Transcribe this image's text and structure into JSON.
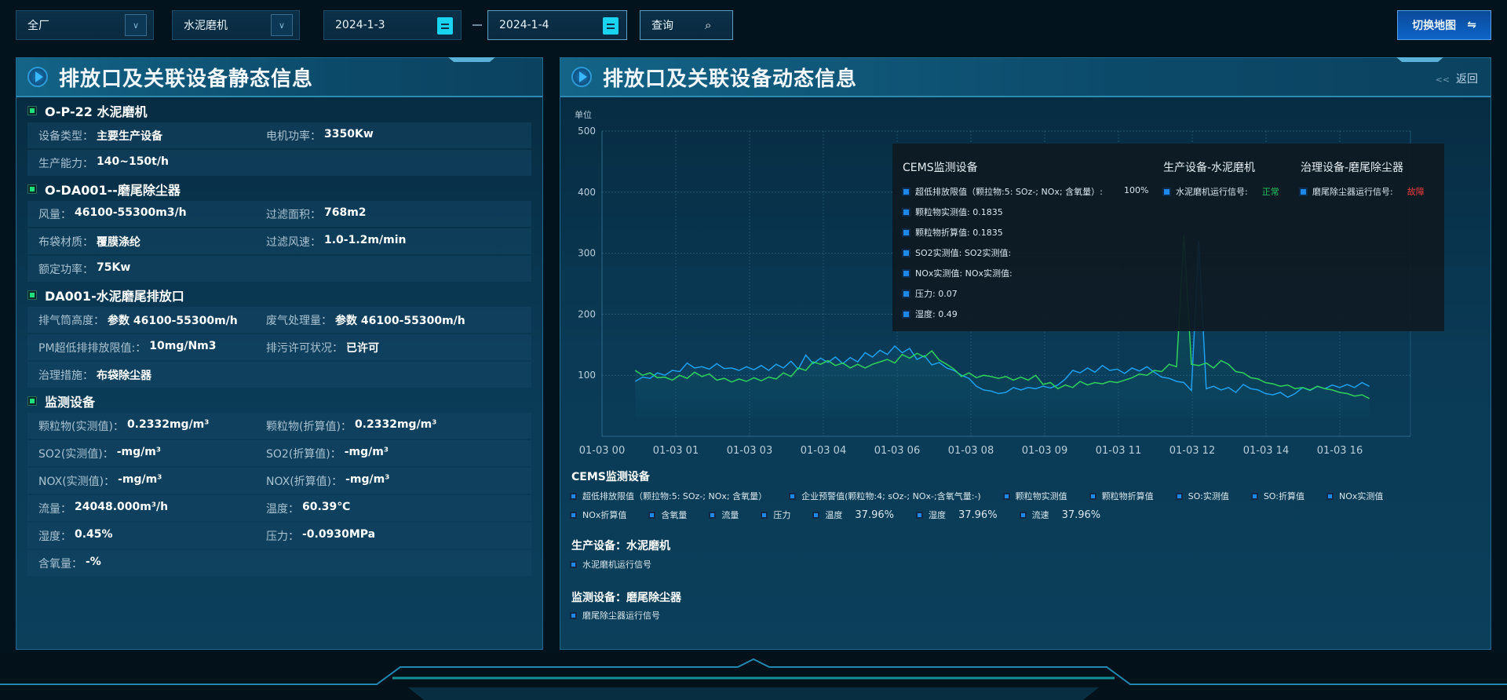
{
  "toolbar": {
    "factory": "全厂",
    "equipment": "水泥磨机",
    "date_start": "2024-1-3",
    "date_end": "2024-1-4",
    "query_label": "查询",
    "switch_map_label": "切换地图"
  },
  "left_panel": {
    "title": "排放口及关联设备静态信息",
    "sections": [
      {
        "title": "O-P-22 水泥磨机",
        "rows": [
          [
            {
              "label": "设备类型：",
              "value": "主要生产设备"
            },
            {
              "label": "电机功率：",
              "value": "3350Kw"
            }
          ],
          [
            {
              "label": "生产能力：",
              "value": "140~150t/h"
            }
          ]
        ]
      },
      {
        "title": "O-DA001--磨尾除尘器",
        "rows": [
          [
            {
              "label": "风量：",
              "value": "46100-55300m3/h"
            },
            {
              "label": "过滤面积：",
              "value": "768m2"
            }
          ],
          [
            {
              "label": "布袋材质：",
              "value": "覆膜涤纶"
            },
            {
              "label": "过滤风速：",
              "value": "1.0-1.2m/min"
            }
          ],
          [
            {
              "label": "额定功率：",
              "value": "75Kw"
            }
          ]
        ]
      },
      {
        "title": "DA001-水泥磨尾排放口",
        "rows": [
          [
            {
              "label": "排气筒高度：",
              "value": "参数 46100-55300m/h"
            },
            {
              "label": "废气处理量：",
              "value": "参数 46100-55300m/h"
            }
          ],
          [
            {
              "label": "PM超低排排放限值:：",
              "value": "10mg/Nm3"
            },
            {
              "label": "排污许可状况：",
              "value": "已许可"
            }
          ],
          [
            {
              "label": "治理措施：",
              "value": "布袋除尘器"
            }
          ]
        ]
      },
      {
        "title": "监测设备",
        "rows": [
          [
            {
              "label": "颗粒物(实测值)：",
              "value": "0.2332mg/m³"
            },
            {
              "label": "颗粒物(折算值)：",
              "value": "0.2332mg/m³"
            }
          ],
          [
            {
              "label": "SO2(实测值)：",
              "value": "-mg/m³"
            },
            {
              "label": "SO2(折算值)：",
              "value": "-mg/m³"
            }
          ],
          [
            {
              "label": "NOX(实测值)：",
              "value": "-mg/m³"
            },
            {
              "label": "NOX(折算值)：",
              "value": "-mg/m³"
            }
          ],
          [
            {
              "label": "流量：",
              "value": "24048.000m³/h"
            },
            {
              "label": "温度：",
              "value": "60.39℃"
            }
          ],
          [
            {
              "label": "湿度：",
              "value": "0.45%"
            },
            {
              "label": "压力：",
              "value": "-0.0930MPa"
            }
          ],
          [
            {
              "label": "含氧量：",
              "value": "-%"
            }
          ]
        ]
      }
    ]
  },
  "right_panel": {
    "title": "排放口及关联设备动态信息",
    "back_label": "返回"
  },
  "tooltip": {
    "cems_title": "CEMS监测设备",
    "cems_items": [
      "超低排放限值（颗拉物:5: SOz-; NOx; 含氧量）:",
      "颗粒物实测值: 0.1835",
      "颗粒物折算值: 0.1835",
      "SO2实测值: SO2实测值:",
      "NOx实测值: NOx实测值:",
      "压力: 0.07",
      "湿度: 0.49"
    ],
    "cems_first_value": "100%",
    "production_title": "生产设备-水泥磨机",
    "production_item": "水泥磨机运行信号:",
    "production_status": "正常",
    "treatment_title": "治理设备-磨尾除尘器",
    "treatment_item": "磨尾除尘器运行信号:",
    "treatment_status": "故障"
  },
  "legend": {
    "cems_title": "CEMS监测设备",
    "cems_row1": [
      {
        "label": "超低排放限值（颗拉物:5: SOz-; NOx; 含氧量）"
      },
      {
        "label": "企业预警值(颗粒物:4; sOz-; NOx-;含氧气量:-)"
      },
      {
        "label": "颗粒物实测值"
      },
      {
        "label": "颗粒物折算值"
      },
      {
        "label": "SO:实测值"
      },
      {
        "label": "SO:折算值"
      },
      {
        "label": "NOx实测值"
      }
    ],
    "cems_row2": [
      {
        "label": "NOx折算值"
      },
      {
        "label": "含氧量"
      },
      {
        "label": "流量"
      },
      {
        "label": "压力"
      },
      {
        "label": "温度",
        "value": "37.96%"
      },
      {
        "label": "湿度",
        "value": "37.96%"
      },
      {
        "label": "流速",
        "value": "37.96%"
      }
    ],
    "production_title": "生产设备：水泥磨机",
    "production_items": [
      "水泥磨机运行信号"
    ],
    "monitor_title": "监测设备：磨尾除尘器",
    "monitor_items": [
      "磨尾除尘器运行信号"
    ]
  },
  "colors": {
    "accent": "#1e88e8",
    "series_blue": "#1ea0f0",
    "series_green": "#2fd25a",
    "status_ok": "#22c55e",
    "status_fault": "#ef3b3b"
  },
  "chart_data": {
    "type": "line",
    "ylabel": "单位",
    "ylim": [
      0,
      500
    ],
    "yticks": [
      100,
      200,
      300,
      400,
      500
    ],
    "x_tick_labels": [
      "01-03 00",
      "01-03 01",
      "01-03 03",
      "01-03 04",
      "01-03 06",
      "01-03 08",
      "01-03 09",
      "01-03 11",
      "01-03 12",
      "01-03 14",
      "01-03 16"
    ],
    "grid": true,
    "series": [
      {
        "color": "#1ea0f0",
        "values": [
          90,
          97,
          95,
          104,
          100,
          108,
          106,
          120,
          112,
          114,
          110,
          119,
          111,
          112,
          108,
          114,
          109,
          116,
          108,
          118,
          112,
          123,
          110,
          133,
          119,
          128,
          121,
          130,
          119,
          129,
          122,
          137,
          130,
          141,
          134,
          148,
          137,
          144,
          126,
          132,
          117,
          121,
          112,
          108,
          100,
          95,
          82,
          76,
          74,
          70,
          72,
          80,
          76,
          80,
          78,
          82,
          79,
          84,
          94,
          108,
          104,
          112,
          105,
          116,
          108,
          110,
          103,
          112,
          107,
          114,
          105,
          97,
          95,
          90,
          88,
          75,
          320,
          78,
          82,
          76,
          80,
          72,
          85,
          78,
          76,
          70,
          68,
          72,
          64,
          70,
          80,
          75,
          82,
          78,
          84,
          80,
          85,
          80,
          88,
          82
        ]
      },
      {
        "color": "#2fd25a",
        "values": [
          108,
          100,
          104,
          96,
          97,
          92,
          100,
          95,
          105,
          98,
          102,
          92,
          95,
          89,
          94,
          90,
          96,
          91,
          97,
          94,
          104,
          98,
          112,
          108,
          122,
          118,
          124,
          116,
          120,
          112,
          118,
          112,
          118,
          122,
          126,
          120,
          134,
          128,
          136,
          130,
          140,
          125,
          118,
          110,
          98,
          104,
          96,
          100,
          98,
          95,
          98,
          92,
          97,
          92,
          100,
          85,
          88,
          78,
          84,
          80,
          90,
          84,
          88,
          86,
          90,
          88,
          92,
          96,
          102,
          100,
          108,
          106,
          118,
          114,
          330,
          118,
          116,
          120,
          112,
          124,
          118,
          106,
          104,
          96,
          94,
          88,
          86,
          82,
          84,
          78,
          80,
          76,
          82,
          78,
          76,
          72,
          70,
          66,
          68,
          62
        ]
      }
    ]
  }
}
